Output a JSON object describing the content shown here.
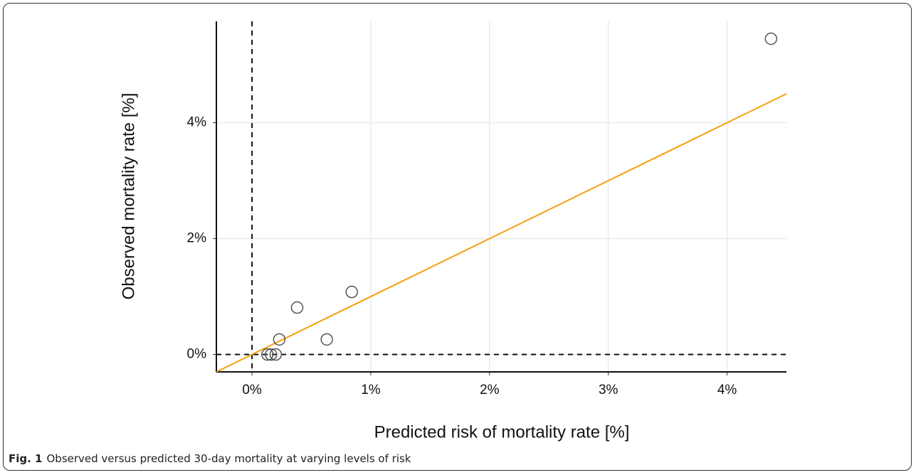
{
  "chart_data": {
    "type": "scatter",
    "x_label": "Predicted risk of mortality rate [%]",
    "y_label": "Observed mortality rate [%]",
    "x": [
      4.37,
      0.84,
      0.38,
      0.63,
      0.23,
      0.13,
      0.16,
      0.2
    ],
    "y": [
      5.45,
      1.08,
      0.81,
      0.26,
      0.26,
      0,
      0,
      0
    ],
    "point_color": "#555555",
    "identity_line_color": "#f5a00f",
    "zero_lines": true,
    "grid": true,
    "xlim": [
      -0.3,
      4.5
    ],
    "ylim": [
      -0.3,
      5.75
    ],
    "xticks": [
      {
        "value": 0,
        "label": "0%"
      },
      {
        "value": 1,
        "label": "1%"
      },
      {
        "value": 2,
        "label": "2%"
      },
      {
        "value": 3,
        "label": "3%"
      },
      {
        "value": 4,
        "label": "4%"
      }
    ],
    "yticks": [
      {
        "value": 0,
        "label": "0%"
      },
      {
        "value": 2,
        "label": "2%"
      },
      {
        "value": 4,
        "label": "4%"
      }
    ],
    "caption_label": "Fig. 1",
    "caption": "Observed versus predicted 30-day mortality at varying levels of risk"
  }
}
